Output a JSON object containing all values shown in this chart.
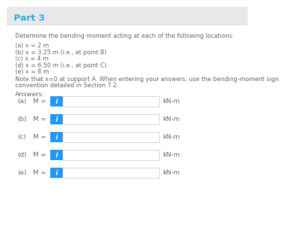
{
  "title": "Part 3",
  "title_color": "#29ABE2",
  "header_bg": "#e8e8e8",
  "content_bg": "#ffffff",
  "description": "Determine the bending moment acting at each of the following locations:",
  "items": [
    "(a) x = 2 m",
    "(b) x = 3.25 m (i.e., at point B)",
    "(c) x = 4 m",
    "(d) x = 6.50 m (i.e., at point C)",
    "(e) x = 8 m"
  ],
  "note_line1": "Note that x=0 at support A. When entering your answers, use the bending-moment sign",
  "note_line2": "convention detailed in Section 7.2.",
  "answers_label": "Answers:",
  "answer_labels": [
    "(a)",
    "(b)",
    "(c)",
    "(d)",
    "(e)"
  ],
  "unit": "kN-m",
  "text_color": "#666666",
  "button_color": "#2196F3",
  "button_text": "i",
  "button_text_color": "#ffffff",
  "input_box_color": "#ffffff",
  "input_box_border": "#cccccc",
  "M_equals": "M ="
}
